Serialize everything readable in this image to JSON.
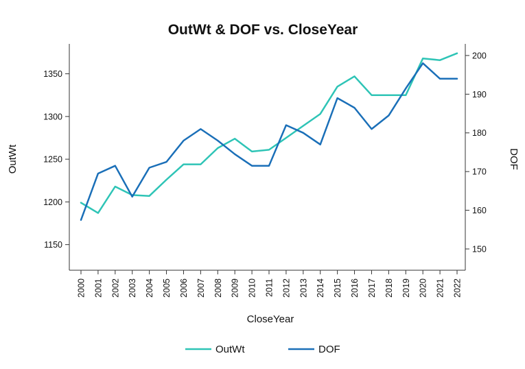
{
  "chart_data": {
    "type": "line",
    "title": "OutWt & DOF vs. CloseYear",
    "xlabel": "CloseYear",
    "ylabel_left": "OutWt",
    "ylabel_right": "DOF",
    "x": [
      "2000",
      "2001",
      "2002",
      "2003",
      "2004",
      "2005",
      "2006",
      "2007",
      "2008",
      "2009",
      "2010",
      "2011",
      "2012",
      "2013",
      "2014",
      "2015",
      "2016",
      "2017",
      "2018",
      "2019",
      "2020",
      "2021",
      "2022"
    ],
    "y_left_ticks": [
      1150,
      1200,
      1250,
      1300,
      1350
    ],
    "y_left_range": [
      1120,
      1385
    ],
    "y_right_ticks": [
      150,
      160,
      170,
      180,
      190,
      200
    ],
    "y_right_range": [
      144.5,
      203
    ],
    "grid": false,
    "legend_position": "bottom",
    "series": [
      {
        "name": "OutWt",
        "axis": "left",
        "color": "#2ec4b6",
        "values": [
          1199,
          1187,
          1218,
          1208,
          1207,
          1226,
          1244,
          1244,
          1263,
          1274,
          1259,
          1261,
          1275,
          1289,
          1303,
          1335,
          1347,
          1325,
          1325,
          1325,
          1368,
          1366,
          1374
        ]
      },
      {
        "name": "DOF",
        "axis": "right",
        "color": "#1a6fb8",
        "values": [
          157.5,
          169.5,
          171.5,
          163.5,
          171,
          172.5,
          178,
          181,
          178,
          174.5,
          171.5,
          171.5,
          182,
          180,
          177,
          189,
          186.5,
          181,
          184.5,
          191.5,
          198,
          194,
          194
        ]
      }
    ]
  }
}
